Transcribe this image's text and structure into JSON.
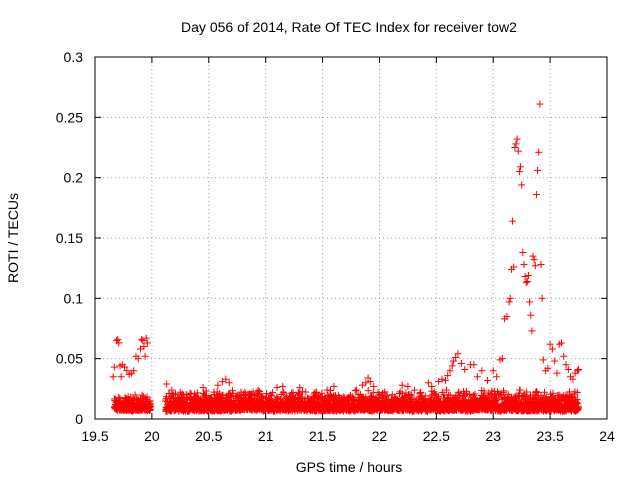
{
  "chart_data": {
    "type": "scatter",
    "title": "Day 056 of 2014, Rate Of TEC Index for receiver tow2",
    "xlabel": "GPS time / hours",
    "ylabel": "ROTI / TECUs",
    "xlim": [
      19.5,
      24
    ],
    "ylim": [
      0,
      0.3
    ],
    "grid": true,
    "marker": "+",
    "color": "#ff0000",
    "xticks": [
      {
        "value": 19.5,
        "label": "19.5"
      },
      {
        "value": 20,
        "label": "20"
      },
      {
        "value": 20.5,
        "label": "20.5"
      },
      {
        "value": 21,
        "label": "21"
      },
      {
        "value": 21.5,
        "label": "21.5"
      },
      {
        "value": 22,
        "label": "22"
      },
      {
        "value": 22.5,
        "label": "22.5"
      },
      {
        "value": 23,
        "label": "23"
      },
      {
        "value": 23.5,
        "label": "23.5"
      },
      {
        "value": 24,
        "label": "24"
      }
    ],
    "yticks": [
      {
        "value": 0,
        "label": "0"
      },
      {
        "value": 0.05,
        "label": "0.05"
      },
      {
        "value": 0.1,
        "label": "0.1"
      },
      {
        "value": 0.15,
        "label": "0.15"
      },
      {
        "value": 0.2,
        "label": "0.2"
      },
      {
        "value": 0.25,
        "label": "0.25"
      },
      {
        "value": 0.3,
        "label": "0.3"
      }
    ],
    "baseline_bands": [
      {
        "x_start": 19.67,
        "x_end": 19.99,
        "y_min": 0.004,
        "y_max": 0.02
      },
      {
        "x_start": 20.12,
        "x_end": 23.75,
        "y_min": 0.003,
        "y_max": 0.024
      }
    ],
    "points": [
      [
        19.66,
        0.035
      ],
      [
        19.67,
        0.043
      ],
      [
        19.69,
        0.065
      ],
      [
        19.7,
        0.066
      ],
      [
        19.71,
        0.063
      ],
      [
        19.72,
        0.044
      ],
      [
        19.73,
        0.035
      ],
      [
        19.74,
        0.045
      ],
      [
        19.76,
        0.043
      ],
      [
        19.78,
        0.04
      ],
      [
        19.8,
        0.037
      ],
      [
        19.82,
        0.038
      ],
      [
        19.84,
        0.04
      ],
      [
        19.86,
        0.052
      ],
      [
        19.88,
        0.05
      ],
      [
        19.9,
        0.058
      ],
      [
        19.91,
        0.066
      ],
      [
        19.92,
        0.065
      ],
      [
        19.93,
        0.06
      ],
      [
        19.94,
        0.052
      ],
      [
        19.95,
        0.067
      ],
      [
        19.96,
        0.063
      ],
      [
        20.13,
        0.029
      ],
      [
        20.45,
        0.026
      ],
      [
        20.58,
        0.028
      ],
      [
        20.62,
        0.031
      ],
      [
        20.65,
        0.033
      ],
      [
        20.68,
        0.03
      ],
      [
        21.1,
        0.026
      ],
      [
        21.15,
        0.027
      ],
      [
        21.3,
        0.026
      ],
      [
        21.6,
        0.027
      ],
      [
        21.85,
        0.028
      ],
      [
        21.88,
        0.03
      ],
      [
        21.9,
        0.034
      ],
      [
        21.92,
        0.031
      ],
      [
        21.95,
        0.027
      ],
      [
        22.2,
        0.028
      ],
      [
        22.25,
        0.027
      ],
      [
        22.43,
        0.03
      ],
      [
        22.46,
        0.027
      ],
      [
        22.52,
        0.031
      ],
      [
        22.55,
        0.033
      ],
      [
        22.58,
        0.032
      ],
      [
        22.6,
        0.036
      ],
      [
        22.62,
        0.04
      ],
      [
        22.64,
        0.044
      ],
      [
        22.65,
        0.048
      ],
      [
        22.67,
        0.051
      ],
      [
        22.69,
        0.054
      ],
      [
        22.72,
        0.046
      ],
      [
        22.75,
        0.041
      ],
      [
        22.8,
        0.045
      ],
      [
        22.83,
        0.045
      ],
      [
        22.86,
        0.035
      ],
      [
        22.9,
        0.04
      ],
      [
        22.95,
        0.032
      ],
      [
        23.0,
        0.04
      ],
      [
        23.03,
        0.035
      ],
      [
        23.06,
        0.049
      ],
      [
        23.08,
        0.05
      ],
      [
        23.1,
        0.083
      ],
      [
        23.12,
        0.085
      ],
      [
        23.14,
        0.097
      ],
      [
        23.15,
        0.1
      ],
      [
        23.16,
        0.124
      ],
      [
        23.17,
        0.164
      ],
      [
        23.18,
        0.126
      ],
      [
        23.19,
        0.225
      ],
      [
        23.2,
        0.228
      ],
      [
        23.21,
        0.232
      ],
      [
        23.22,
        0.222
      ],
      [
        23.23,
        0.205
      ],
      [
        23.24,
        0.209
      ],
      [
        23.25,
        0.194
      ],
      [
        23.26,
        0.138
      ],
      [
        23.27,
        0.128
      ],
      [
        23.28,
        0.118
      ],
      [
        23.29,
        0.113
      ],
      [
        23.3,
        0.114
      ],
      [
        23.31,
        0.119
      ],
      [
        23.32,
        0.097
      ],
      [
        23.33,
        0.086
      ],
      [
        23.34,
        0.073
      ],
      [
        23.35,
        0.135
      ],
      [
        23.36,
        0.132
      ],
      [
        23.37,
        0.127
      ],
      [
        23.38,
        0.186
      ],
      [
        23.39,
        0.206
      ],
      [
        23.4,
        0.221
      ],
      [
        23.41,
        0.261
      ],
      [
        23.42,
        0.128
      ],
      [
        23.43,
        0.1
      ],
      [
        23.44,
        0.049
      ],
      [
        23.46,
        0.04
      ],
      [
        23.48,
        0.042
      ],
      [
        23.5,
        0.062
      ],
      [
        23.52,
        0.058
      ],
      [
        23.54,
        0.048
      ],
      [
        23.56,
        0.038
      ],
      [
        23.58,
        0.062
      ],
      [
        23.6,
        0.063
      ],
      [
        23.62,
        0.052
      ],
      [
        23.64,
        0.045
      ],
      [
        23.66,
        0.041
      ],
      [
        23.68,
        0.035
      ],
      [
        23.7,
        0.033
      ],
      [
        23.72,
        0.038
      ],
      [
        23.74,
        0.04
      ],
      [
        23.75,
        0.041
      ]
    ]
  }
}
